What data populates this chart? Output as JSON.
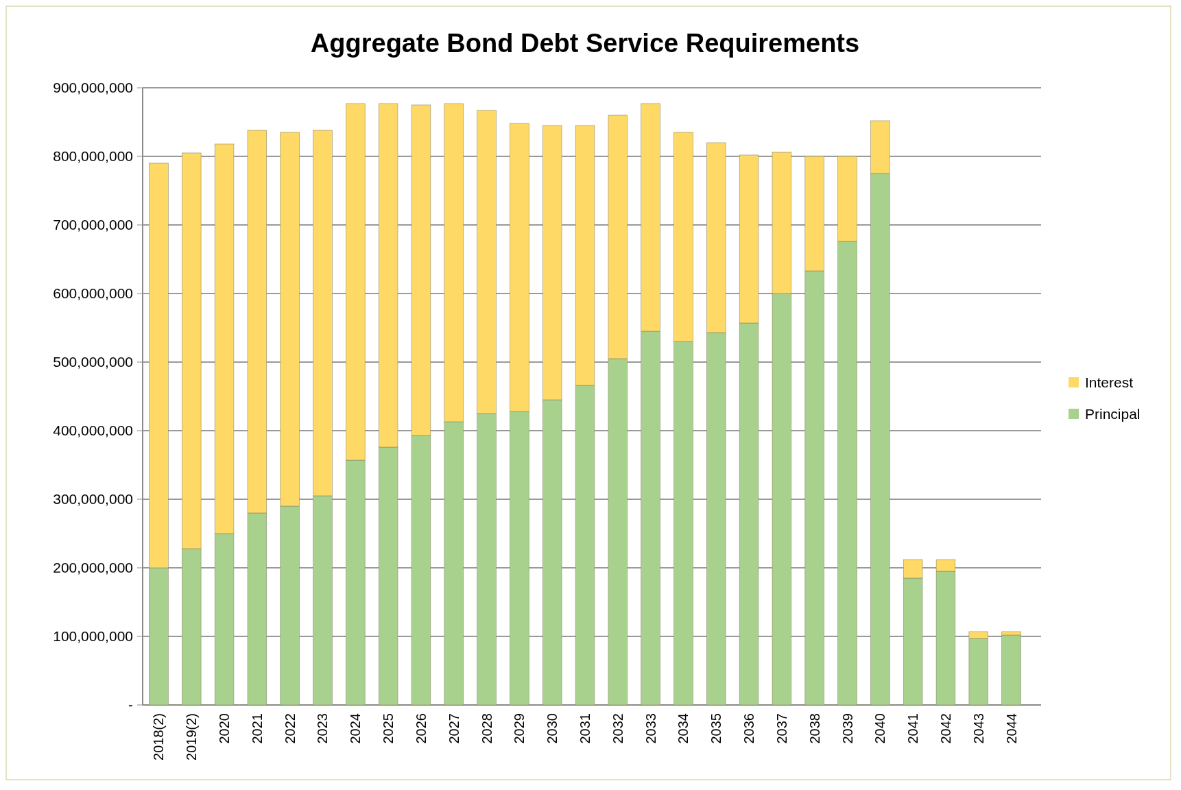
{
  "chart_data": {
    "type": "bar",
    "title": "Aggregate Bond Debt Service Requirements",
    "stacked": true,
    "grid": "y",
    "legend": "right",
    "categories": [
      "2018(2)",
      "2019(2)",
      "2020",
      "2021",
      "2022",
      "2023",
      "2024",
      "2025",
      "2026",
      "2027",
      "2028",
      "2029",
      "2030",
      "2031",
      "2032",
      "2033",
      "2034",
      "2035",
      "2036",
      "2037",
      "2038",
      "2039",
      "2040",
      "2041",
      "2042",
      "2043",
      "2044"
    ],
    "series": [
      {
        "name": "Principal",
        "color": "#a9d18e",
        "values": [
          200000000,
          228000000,
          250000000,
          280000000,
          290000000,
          305000000,
          357000000,
          376000000,
          393000000,
          413000000,
          425000000,
          428000000,
          445000000,
          466000000,
          505000000,
          545000000,
          530000000,
          543000000,
          557000000,
          600000000,
          633000000,
          676000000,
          775000000,
          185000000,
          195000000,
          97000000,
          102000000
        ]
      },
      {
        "name": "Interest",
        "color": "#ffd966",
        "values": [
          590000000,
          577000000,
          568000000,
          558000000,
          545000000,
          533000000,
          520000000,
          501000000,
          482000000,
          464000000,
          442000000,
          420000000,
          400000000,
          379000000,
          355000000,
          332000000,
          305000000,
          277000000,
          245000000,
          206000000,
          167000000,
          124000000,
          77000000,
          27000000,
          17000000,
          10000000,
          5000000
        ]
      }
    ],
    "ylim": [
      0,
      900000000
    ],
    "yticks": [
      {
        "value": 0,
        "label": "-"
      },
      {
        "value": 100000000,
        "label": "100,000,000"
      },
      {
        "value": 200000000,
        "label": "200,000,000"
      },
      {
        "value": 300000000,
        "label": "300,000,000"
      },
      {
        "value": 400000000,
        "label": "400,000,000"
      },
      {
        "value": 500000000,
        "label": "500,000,000"
      },
      {
        "value": 600000000,
        "label": "600,000,000"
      },
      {
        "value": 700000000,
        "label": "700,000,000"
      },
      {
        "value": 800000000,
        "label": "800,000,000"
      },
      {
        "value": 900000000,
        "label": "900,000,000"
      }
    ]
  }
}
